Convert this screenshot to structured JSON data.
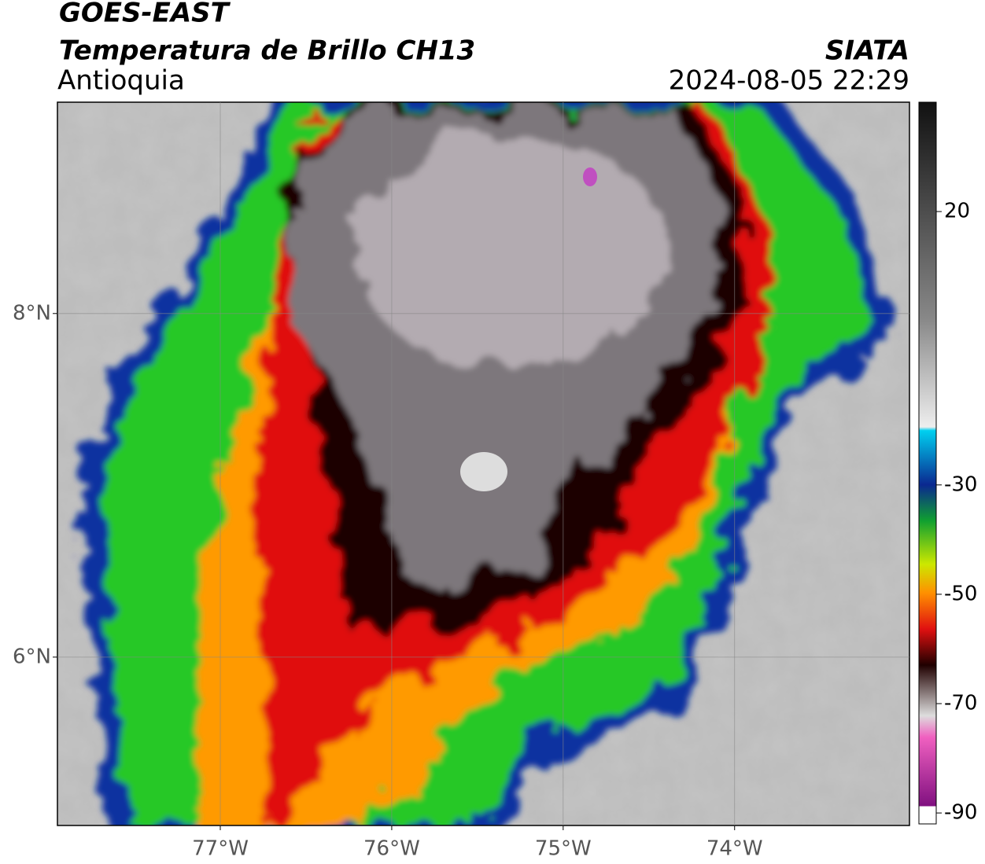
{
  "header": {
    "title": "GOES-EAST",
    "subtitle": "Temperatura de Brillo CH13",
    "region": "Antioquia",
    "source": "SIATA",
    "datetime": "2024-08-05 22:29"
  },
  "map": {
    "xlim": [
      -77.95,
      -72.98
    ],
    "ylim": [
      5.02,
      9.23
    ],
    "xticks": [
      {
        "value": -77,
        "label": "77°W"
      },
      {
        "value": -76,
        "label": "76°W"
      },
      {
        "value": -75,
        "label": "75°W"
      },
      {
        "value": -74,
        "label": "74°W"
      }
    ],
    "yticks": [
      {
        "value": 6,
        "label": "6°N"
      },
      {
        "value": 8,
        "label": "8°N"
      }
    ],
    "grid": true
  },
  "colorbar": {
    "lim": [
      -92,
      40
    ],
    "ticks": [
      -90,
      -70,
      -50,
      -30,
      20
    ]
  }
}
